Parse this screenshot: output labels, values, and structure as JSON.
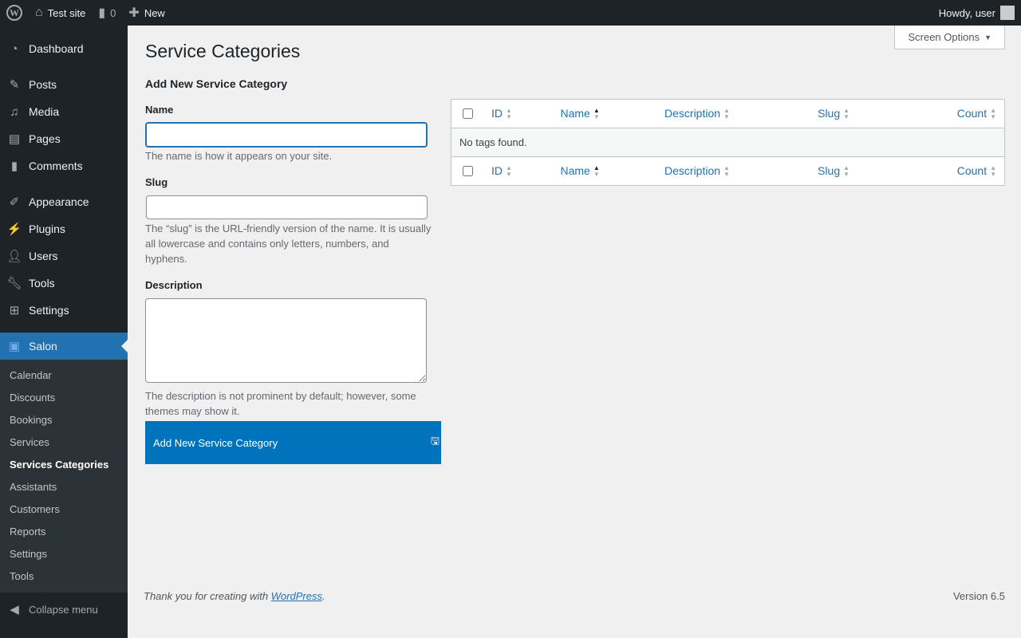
{
  "adminbar": {
    "site": "Test site",
    "comments": "0",
    "new": "New",
    "howdy": "Howdy, user"
  },
  "sidebar": {
    "items": [
      {
        "label": "Dashboard",
        "icon": "dashboard-icon"
      },
      {
        "label": "Posts",
        "icon": "pin-icon"
      },
      {
        "label": "Media",
        "icon": "media-icon"
      },
      {
        "label": "Pages",
        "icon": "pages-icon"
      },
      {
        "label": "Comments",
        "icon": "comment-icon"
      },
      {
        "label": "Appearance",
        "icon": "brush-icon"
      },
      {
        "label": "Plugins",
        "icon": "plugin-icon"
      },
      {
        "label": "Users",
        "icon": "user-icon"
      },
      {
        "label": "Tools",
        "icon": "wrench-icon"
      },
      {
        "label": "Settings",
        "icon": "settings-icon"
      },
      {
        "label": "Salon",
        "icon": "calendar-icon"
      }
    ],
    "submenu": [
      "Calendar",
      "Discounts",
      "Bookings",
      "Services",
      "Services Categories",
      "Assistants",
      "Customers",
      "Reports",
      "Settings",
      "Tools"
    ],
    "collapse": "Collapse menu"
  },
  "page": {
    "title": "Service Categories",
    "screen_options": "Screen Options",
    "form_title": "Add New Service Category",
    "name_label": "Name",
    "name_value": "",
    "name_hint": "The name is how it appears on your site.",
    "slug_label": "Slug",
    "slug_value": "",
    "slug_hint": "The “slug” is the URL-friendly version of the name. It is usually all lowercase and contains only letters, numbers, and hyphens.",
    "desc_label": "Description",
    "desc_value": "",
    "desc_hint": "The description is not prominent by default; however, some themes may show it.",
    "submit": "Add New Service Category"
  },
  "table": {
    "columns": [
      "ID",
      "Name",
      "Description",
      "Slug",
      "Count"
    ],
    "sorted_column": "Name",
    "empty": "No tags found."
  },
  "footer": {
    "thanks": "Thank you for creating with ",
    "link": "WordPress",
    "version": "Version 6.5"
  },
  "colors": {
    "accent": "#2271b1",
    "button": "#0073bd",
    "sidebar": "#1d2327"
  }
}
